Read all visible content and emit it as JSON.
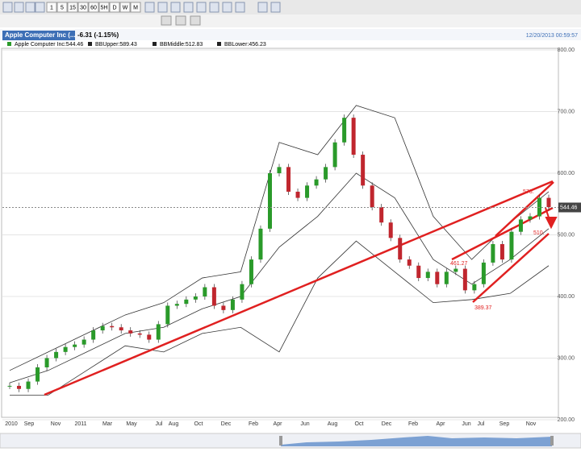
{
  "toolbar": {
    "buttons": [
      "1",
      "5",
      "15",
      "30",
      "60",
      "5H",
      "D",
      "W",
      "M"
    ]
  },
  "header": {
    "tab": "Apple Computer Inc (...",
    "change": "-6.31 (-1.15%)",
    "timestamp": "12/20/2013 00:59:57"
  },
  "legend": [
    "Apple Computer Inc:544.46",
    "BBUpper:589.43",
    "BBMiddle:512.83",
    "BBLower:456.23"
  ],
  "chart": {
    "ylim": [
      200,
      800
    ],
    "yticks": [
      {
        "value": 800,
        "label": "800.00"
      },
      {
        "value": 700,
        "label": "700.00"
      },
      {
        "value": 600,
        "label": "600.00"
      },
      {
        "value": 500,
        "label": "500.00"
      },
      {
        "value": 400,
        "label": "400.00"
      },
      {
        "value": 300,
        "label": "300.00"
      },
      {
        "value": 200,
        "label": "200.00"
      }
    ],
    "xlabels": [
      "2010",
      "Sep",
      "Nov",
      "2011",
      "Mar",
      "May",
      "Jul",
      "Aug",
      "Oct",
      "Dec",
      "Feb",
      "Apr",
      "Jun",
      "Aug",
      "Oct",
      "Dec",
      "Feb",
      "Apr",
      "Jun",
      "Jul",
      "Sep",
      "Nov"
    ],
    "closes": [
      255,
      250,
      262,
      285,
      300,
      310,
      318,
      322,
      330,
      345,
      352,
      350,
      345,
      340,
      338,
      330,
      355,
      385,
      388,
      395,
      400,
      415,
      385,
      378,
      395,
      420,
      460,
      510,
      600,
      610,
      570,
      560,
      580,
      590,
      610,
      650,
      690,
      630,
      580,
      545,
      520,
      495,
      460,
      450,
      430,
      440,
      420,
      440,
      445,
      410,
      420,
      455,
      485,
      460,
      505,
      525,
      530,
      560,
      545
    ],
    "bb_upper": [
      280,
      310,
      340,
      370,
      390,
      430,
      440,
      650,
      630,
      710,
      690,
      530,
      460,
      520,
      570
    ],
    "bb_middle": [
      260,
      280,
      310,
      340,
      350,
      380,
      400,
      480,
      530,
      600,
      560,
      460,
      420,
      460,
      510
    ],
    "bb_lower": [
      240,
      240,
      280,
      320,
      310,
      340,
      350,
      310,
      430,
      490,
      440,
      390,
      395,
      405,
      450
    ],
    "last_price": {
      "value": 544.46,
      "label": "544.46"
    },
    "annotations": [
      "576.",
      "510.",
      "389.37",
      "461.27"
    ]
  }
}
